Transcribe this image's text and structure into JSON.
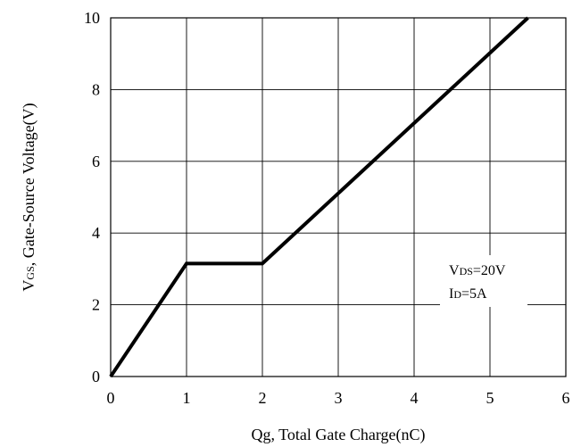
{
  "chart_data": {
    "type": "line",
    "xlabel": "Qg, Total Gate Charge(nC)",
    "ylabel": {
      "v": "V",
      "v_sub": "GS",
      "rest": ", Gate-Source Voltage(V)"
    },
    "xlim": [
      0,
      6
    ],
    "ylim": [
      0,
      10
    ],
    "x_ticks": [
      "0",
      "1",
      "2",
      "3",
      "4",
      "5",
      "6"
    ],
    "y_ticks": [
      "0",
      "2",
      "4",
      "6",
      "8",
      "10"
    ],
    "grid": true,
    "series": [
      {
        "x": [
          0,
          1,
          2,
          5.5
        ],
        "y": [
          0,
          3.15,
          3.15,
          10
        ]
      }
    ],
    "annotations": [
      {
        "main": "V",
        "sub": "DS",
        "rest": "=20V"
      },
      {
        "main": "I",
        "sub": "D",
        "rest": "=5A"
      }
    ]
  }
}
